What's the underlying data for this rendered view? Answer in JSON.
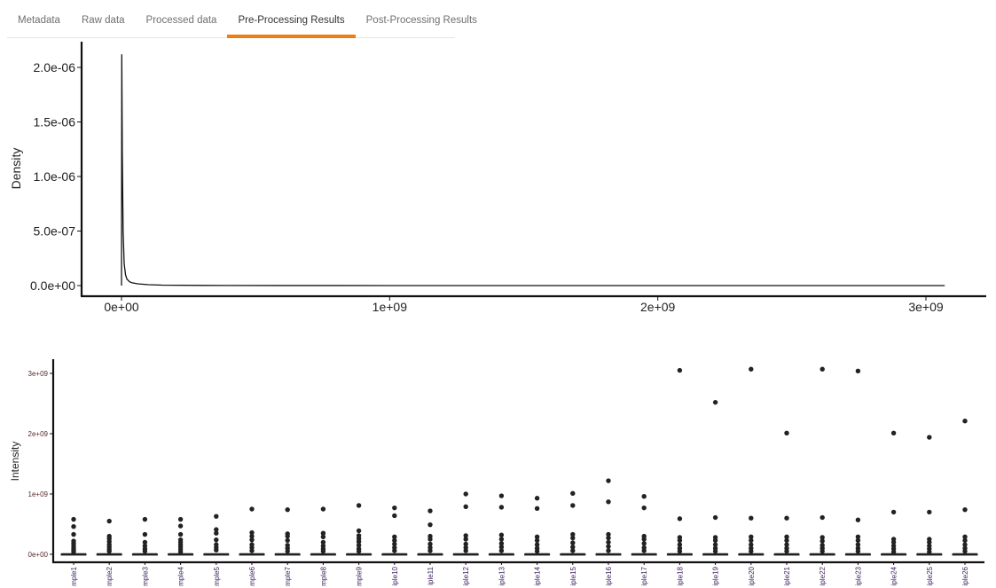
{
  "tabs": [
    {
      "label": "Metadata",
      "active": false
    },
    {
      "label": "Raw data",
      "active": false
    },
    {
      "label": "Processed data",
      "active": false
    },
    {
      "label": "Pre-Processing Results",
      "active": true
    },
    {
      "label": "Post-Processing Results",
      "active": false
    }
  ],
  "accent_color": "#f07d12",
  "chart_data": [
    {
      "type": "line",
      "ylabel": "Density",
      "xlim": [
        0,
        3100000000
      ],
      "ylim": [
        0,
        2.13e-06
      ],
      "x_ticks": [
        {
          "value": 0,
          "label": "0e+00"
        },
        {
          "value": 1000000000,
          "label": "1e+09"
        },
        {
          "value": 2000000000,
          "label": "2e+09"
        },
        {
          "value": 3000000000,
          "label": "3e+09"
        }
      ],
      "y_ticks": [
        {
          "value": 0,
          "label": "0.0e+00"
        },
        {
          "value": 5e-07,
          "label": "5.0e-07"
        },
        {
          "value": 1e-06,
          "label": "1.0e-06"
        },
        {
          "value": 1.5e-06,
          "label": "1.5e-06"
        },
        {
          "value": 2e-06,
          "label": "2.0e-06"
        }
      ],
      "series": [
        {
          "x": [
            0,
            1000000,
            3000000,
            6000000,
            10000000,
            15000000,
            20000000,
            30000000,
            40000000,
            60000000,
            100000000,
            150000000,
            300000000,
            600000000,
            1000000000,
            2000000000,
            3070000000
          ],
          "y": [
            0,
            2.12e-06,
            1.2e-06,
            5e-07,
            2e-07,
            1e-07,
            6e-08,
            3.5e-08,
            2.5e-08,
            1.6e-08,
            8e-09,
            4e-09,
            1.5e-09,
            5e-10,
            2e-10,
            5e-11,
            0
          ]
        }
      ],
      "grid": false
    },
    {
      "type": "box",
      "ylabel": "Intensity",
      "ylim": [
        -50000000,
        3250000000
      ],
      "y_ticks": [
        {
          "value": 0,
          "label": "0e+00"
        },
        {
          "value": 1000000000,
          "label": "1e+09"
        },
        {
          "value": 2000000000,
          "label": "2e+09"
        },
        {
          "value": 3000000000,
          "label": "3e+09"
        }
      ],
      "categories": [
        "mple1",
        "mple2",
        "mple3",
        "mple4",
        "mple5",
        "mple6",
        "mple7",
        "mple8",
        "mple9",
        "iple10",
        "iple11",
        "iple12",
        "iple13",
        "iple14",
        "iple15",
        "iple16",
        "iple17",
        "iple18",
        "iple19",
        "iple20",
        "iple21",
        "iple22",
        "iple23",
        "iple24",
        "iple25",
        "iple26"
      ],
      "box_stats": {
        "q1": 0,
        "median": 0,
        "q3": 5000000,
        "whisker_low": 0,
        "whisker_high": 12000000
      },
      "outliers": [
        [
          580000000,
          460000000,
          330000000,
          220000000,
          180000000,
          140000000,
          100000000,
          70000000,
          40000000
        ],
        [
          550000000,
          300000000,
          260000000,
          210000000,
          160000000,
          120000000,
          80000000,
          50000000
        ],
        [
          580000000,
          330000000,
          200000000,
          140000000,
          90000000,
          50000000
        ],
        [
          580000000,
          470000000,
          330000000,
          240000000,
          200000000,
          160000000,
          120000000,
          80000000,
          40000000
        ],
        [
          630000000,
          410000000,
          350000000,
          240000000,
          160000000,
          110000000,
          70000000
        ],
        [
          750000000,
          360000000,
          300000000,
          240000000,
          160000000,
          110000000,
          60000000
        ],
        [
          740000000,
          340000000,
          300000000,
          230000000,
          150000000,
          100000000,
          50000000
        ],
        [
          750000000,
          350000000,
          290000000,
          200000000,
          140000000,
          90000000,
          50000000
        ],
        [
          810000000,
          390000000,
          310000000,
          260000000,
          210000000,
          150000000,
          90000000,
          50000000
        ],
        [
          770000000,
          640000000,
          290000000,
          230000000,
          170000000,
          110000000,
          60000000
        ],
        [
          720000000,
          490000000,
          300000000,
          250000000,
          170000000,
          110000000,
          60000000
        ],
        [
          1000000000,
          790000000,
          310000000,
          250000000,
          170000000,
          110000000,
          60000000
        ],
        [
          970000000,
          780000000,
          320000000,
          250000000,
          180000000,
          120000000,
          60000000
        ],
        [
          930000000,
          760000000,
          290000000,
          230000000,
          160000000,
          100000000,
          50000000
        ],
        [
          1010000000,
          810000000,
          330000000,
          270000000,
          190000000,
          120000000,
          60000000
        ],
        [
          1220000000,
          870000000,
          330000000,
          270000000,
          200000000,
          130000000,
          60000000
        ],
        [
          960000000,
          770000000,
          300000000,
          250000000,
          180000000,
          110000000,
          60000000
        ],
        [
          3050000000,
          590000000,
          280000000,
          230000000,
          160000000,
          100000000,
          50000000
        ],
        [
          2520000000,
          610000000,
          280000000,
          230000000,
          160000000,
          100000000,
          50000000
        ],
        [
          3070000000,
          600000000,
          290000000,
          230000000,
          160000000,
          100000000,
          50000000
        ],
        [
          2010000000,
          600000000,
          290000000,
          230000000,
          160000000,
          100000000,
          50000000
        ],
        [
          3070000000,
          610000000,
          280000000,
          220000000,
          150000000,
          100000000,
          50000000
        ],
        [
          3040000000,
          570000000,
          290000000,
          230000000,
          160000000,
          100000000,
          50000000
        ],
        [
          2010000000,
          700000000,
          250000000,
          200000000,
          140000000,
          90000000,
          40000000
        ],
        [
          1940000000,
          700000000,
          250000000,
          200000000,
          140000000,
          90000000,
          40000000
        ],
        [
          2210000000,
          740000000,
          290000000,
          230000000,
          160000000,
          100000000,
          50000000
        ]
      ],
      "grid": false
    }
  ]
}
